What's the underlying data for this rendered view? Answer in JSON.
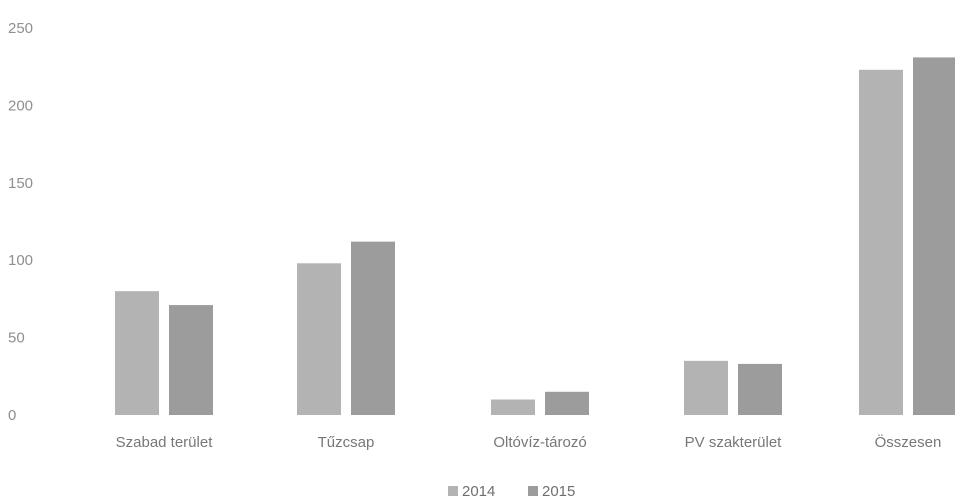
{
  "chart_data": {
    "type": "bar",
    "categories": [
      "Szabad terület",
      "Tűzcsap",
      "Oltóvíz-tározó",
      "PV szakterület",
      "Összesen"
    ],
    "series": [
      {
        "name": "2014",
        "values": [
          80,
          98,
          10,
          35,
          223
        ],
        "color": "#b3b3b3"
      },
      {
        "name": "2015",
        "values": [
          71,
          112,
          15,
          33,
          231
        ],
        "color": "#9c9c9c"
      }
    ],
    "yticks": [
      0,
      50,
      100,
      150,
      200,
      250
    ],
    "ylim": [
      0,
      250
    ],
    "grid": false,
    "legend_position": "bottom-center",
    "title": "",
    "xlabel": "",
    "ylabel": ""
  }
}
